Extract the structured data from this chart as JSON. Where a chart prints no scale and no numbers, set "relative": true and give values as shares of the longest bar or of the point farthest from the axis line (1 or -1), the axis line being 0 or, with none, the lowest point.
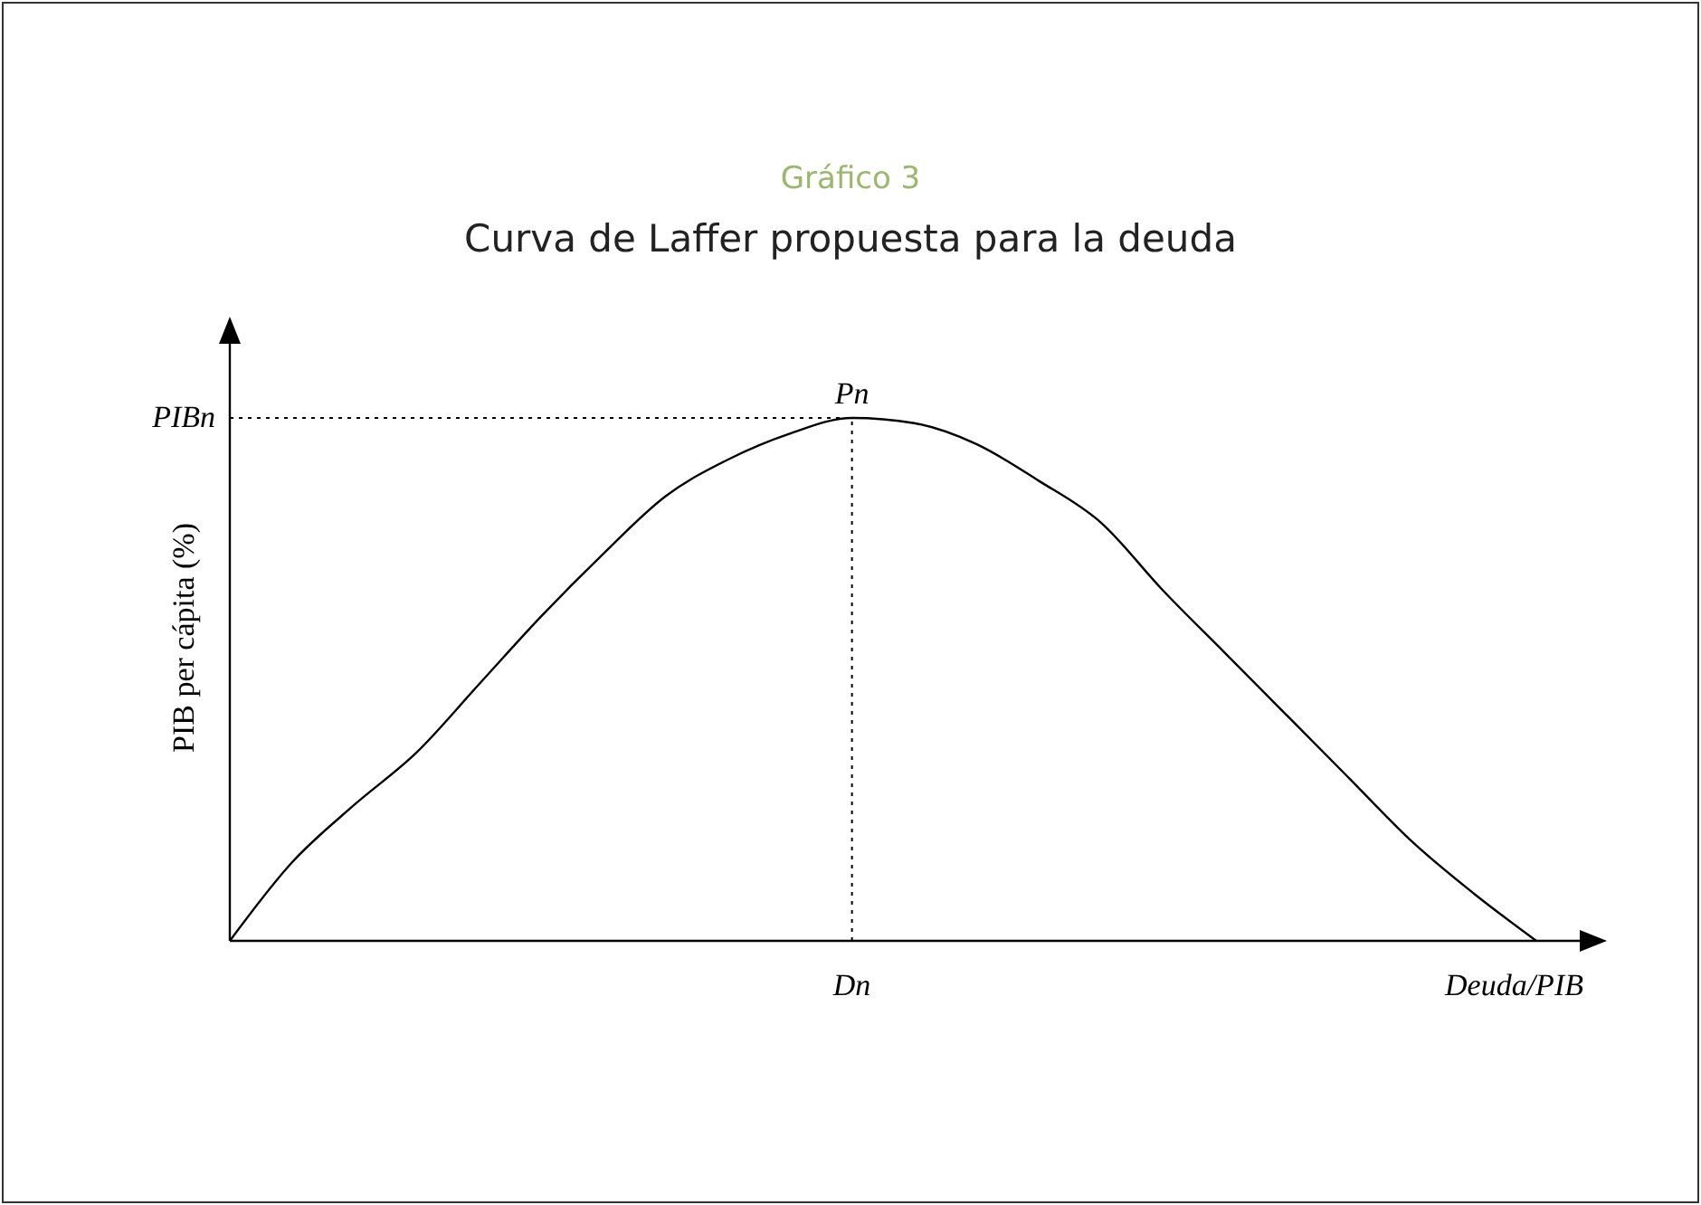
{
  "chart_data": {
    "type": "line",
    "subtitle": "Gráfico 3",
    "title": "Curva de Laffer propuesta para la deuda",
    "xlabel": "Deuda/PIB",
    "ylabel": "PIB per cápita (%)",
    "relative": true,
    "categories": [
      null,
      null,
      null,
      null,
      null,
      null,
      null,
      null,
      null,
      null,
      null,
      null,
      null,
      null,
      null,
      null,
      null,
      null,
      null,
      null,
      null,
      null
    ],
    "series": [
      {
        "color": "#000000",
        "values": [
          0,
          0.15,
          0.26,
          0.36,
          0.49,
          0.62,
          0.74,
          0.85,
          0.92,
          0.97,
          1,
          0.99,
          0.95,
          0.88,
          0.8,
          0.67,
          0.55,
          0.43,
          0.31,
          0.19,
          0.09,
          0
        ]
      }
    ],
    "ref_lines": [
      {
        "axis": "y",
        "value": 1,
        "label": "PIBn",
        "line_style": "dotted",
        "color": "#000000"
      }
    ],
    "annotations": [
      "Pn",
      "Dn"
    ],
    "grid": false,
    "marker": "none",
    "line_style": "solid"
  }
}
